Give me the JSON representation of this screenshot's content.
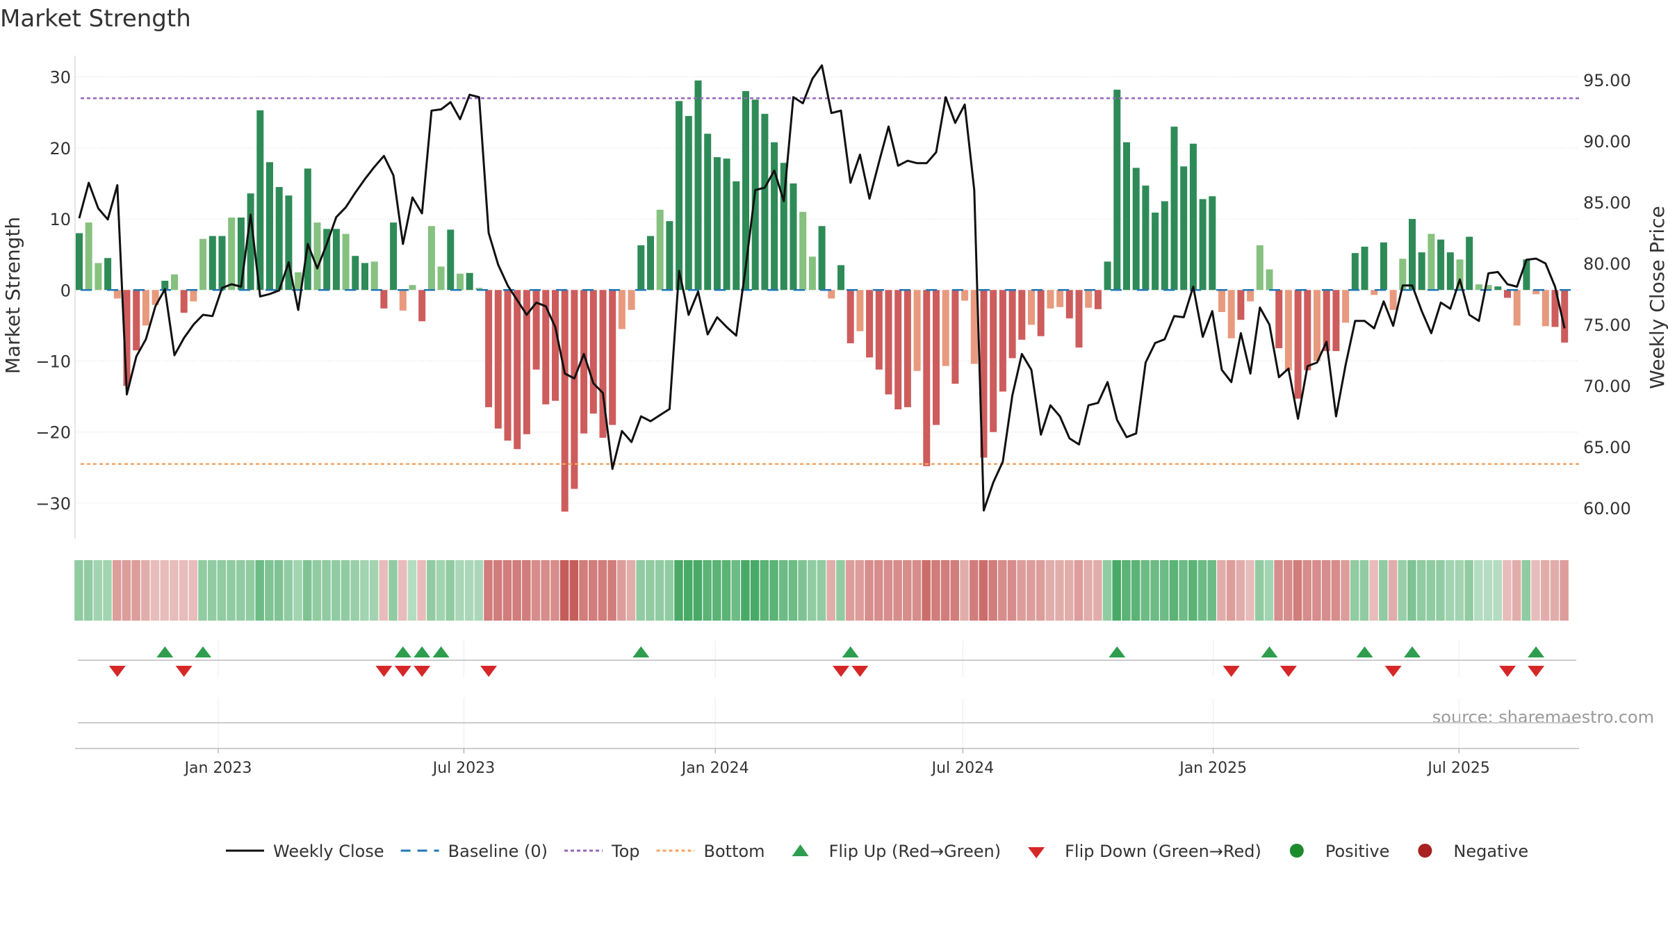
{
  "chart_data": {
    "type": "bar",
    "title": "Market Strength",
    "ylabel_left": "Market Strength",
    "ylabel_right": "Weekly Close Price",
    "source": "source: sharemaestro.com",
    "y_left": {
      "min": -35,
      "max": 33,
      "ticks": [
        30,
        20,
        10,
        0,
        -10,
        -20,
        -30
      ],
      "tick_labels": [
        "30",
        "20",
        "10",
        "0",
        "−10",
        "−20",
        "−30"
      ]
    },
    "y_right": {
      "min": 57.5,
      "max": 97,
      "ticks": [
        95,
        90,
        85,
        80,
        75,
        70,
        65,
        60
      ],
      "tick_labels": [
        "95.00",
        "90.00",
        "85.00",
        "80.00",
        "75.00",
        "70.00",
        "65.00",
        "60.00"
      ]
    },
    "top_level": 27,
    "bottom_level": -24.5,
    "x_axis": {
      "start_week": 0,
      "end_week": 158,
      "ticks": [
        {
          "week": 14.6,
          "label": "Jan 2023"
        },
        {
          "week": 40.4,
          "label": "Jul 2023"
        },
        {
          "week": 66.8,
          "label": "Jan 2024"
        },
        {
          "week": 92.8,
          "label": "Jul 2024"
        },
        {
          "week": 119.1,
          "label": "Jan 2025"
        },
        {
          "week": 144.9,
          "label": "Jul 2025"
        }
      ]
    },
    "strength": [
      8,
      9.5,
      3.8,
      4.5,
      -1.2,
      -13.5,
      -8.5,
      -5,
      -2.1,
      1.3,
      2.2,
      -3.2,
      -1.6,
      7.2,
      7.6,
      7.6,
      10.2,
      10.2,
      13.6,
      25.3,
      18,
      14.5,
      13.3,
      2.5,
      17.1,
      9.5,
      8.6,
      8.6,
      7.9,
      4.8,
      3.8,
      4,
      -2.6,
      9.5,
      -2.9,
      0.7,
      -4.4,
      9,
      3.3,
      8.5,
      2.3,
      2.4,
      0.3,
      -16.5,
      -19.5,
      -21.2,
      -22.4,
      -20.3,
      -11.2,
      -16.1,
      -15.6,
      -31.2,
      -28,
      -20.2,
      -17.4,
      -20.8,
      -19,
      -5.5,
      -2.8,
      6.3,
      7.6,
      11.3,
      9.7,
      26.6,
      24.5,
      29.5,
      22,
      18.7,
      18.5,
      15.3,
      28,
      26.8,
      24.8,
      20.8,
      17.9,
      15,
      11,
      4.7,
      9,
      -1.2,
      3.5,
      -7.5,
      -5.8,
      -9.5,
      -11.2,
      -14.7,
      -16.8,
      -16.5,
      -11.4,
      -24.8,
      -19,
      -10.7,
      -13.2,
      -1.5,
      -10.4,
      -23.6,
      -20,
      -14.3,
      -9.6,
      -7,
      -4.9,
      -6.5,
      -2.6,
      -2.4,
      -4,
      -8.1,
      -2.5,
      -2.7,
      4,
      28.2,
      20.8,
      17.2,
      14.7,
      10.9,
      12.5,
      23,
      17.4,
      20.6,
      12.8,
      13.2,
      -3.1,
      -6.8,
      -4.2,
      -1.6,
      6.3,
      2.9,
      -8.2,
      -11.3,
      -15.3,
      -11.3,
      -10,
      -8.6,
      -8.6,
      -4.6,
      5.2,
      6.1,
      -0.7,
      6.7,
      -2.8,
      4.4,
      10,
      5.3,
      7.9,
      7.1,
      5.3,
      4.3,
      7.5,
      0.8,
      0.7,
      0.5,
      -1.1,
      -5,
      4.3,
      -0.6,
      -5.1,
      -5.2,
      -7.4
    ],
    "weekly_close": [
      83.7,
      86.6,
      84.5,
      83.6,
      86.4,
      69.3,
      72.4,
      73.8,
      76.5,
      77.9,
      72.5,
      73.9,
      75,
      75.8,
      75.7,
      78,
      78.3,
      78.1,
      84,
      77.3,
      77.5,
      77.8,
      80.1,
      76.2,
      81.6,
      79.6,
      81.6,
      83.8,
      84.6,
      85.8,
      86.9,
      87.9,
      88.8,
      87.2,
      81.6,
      85.4,
      84.1,
      92.5,
      92.6,
      93.2,
      91.8,
      93.8,
      93.6,
      82.5,
      79.9,
      78.2,
      77,
      75.8,
      76.8,
      76.5,
      74.8,
      71,
      70.6,
      72.6,
      70.2,
      69.4,
      63.2,
      66.3,
      65.4,
      67.5,
      67.1,
      67.6,
      68.1,
      79.4,
      75.8,
      77.7,
      74.2,
      75.6,
      74.8,
      74.1,
      79.7,
      86,
      86.2,
      87.6,
      85.1,
      93.6,
      93.1,
      95.1,
      96.2,
      92.3,
      92.5,
      86.6,
      88.9,
      85.3,
      88.3,
      91.2,
      88,
      88.4,
      88.2,
      88.2,
      89.1,
      93.6,
      91.5,
      93,
      86,
      59.8,
      62.1,
      63.8,
      69.2,
      72.6,
      71.3,
      66,
      68.4,
      67.5,
      65.7,
      65.2,
      68.4,
      68.6,
      70.3,
      67.2,
      65.8,
      66.1,
      71.9,
      73.5,
      73.8,
      75.7,
      75.6,
      78.1,
      74,
      76.1,
      71.3,
      70.3,
      74.3,
      71,
      76.4,
      75,
      70.7,
      71.4,
      67.3,
      71.6,
      71.9,
      73.6,
      67.5,
      71.7,
      75.3,
      75.3,
      74.7,
      76.9,
      74.9,
      78.2,
      78.2,
      76.1,
      74.3,
      76.8,
      76.3,
      78.7,
      75.8,
      75.3,
      79.2,
      79.3,
      78.3,
      78.1,
      80.3,
      80.4,
      80,
      78.1,
      74.7
    ],
    "heat_strip_values": [
      2,
      2,
      1.5,
      1.5,
      -2,
      -2,
      -2,
      -1.5,
      -1,
      -1,
      -1,
      -1,
      -1,
      2,
      2,
      2,
      2,
      2,
      2,
      3,
      2.5,
      2.5,
      2,
      1.5,
      2.5,
      2,
      2,
      2,
      2,
      1.8,
      1.5,
      1.5,
      -1,
      2,
      -1,
      1,
      -1,
      2,
      1.5,
      2,
      1.3,
      1.3,
      1.3,
      -3,
      -3,
      -3,
      -3,
      -3,
      -2.5,
      -2.5,
      -2.5,
      -4,
      -4,
      -3,
      -3,
      -3,
      -3,
      -2,
      -1.5,
      2,
      2,
      2,
      2,
      4,
      4,
      4,
      3.5,
      3.5,
      3.5,
      3,
      4,
      4,
      3.5,
      3.5,
      3,
      3,
      2.5,
      2,
      2,
      -1.5,
      2,
      -2,
      -2,
      -2.5,
      -2.5,
      -2.5,
      -2.5,
      -2.5,
      -2.5,
      -3.5,
      -3,
      -3,
      -3,
      -1.5,
      -3,
      -3.5,
      -3,
      -2.5,
      -2.5,
      -2,
      -2,
      -2,
      -1.5,
      -1.5,
      -1.5,
      -2,
      -1.5,
      -1.5,
      2,
      4,
      3.5,
      3.5,
      3,
      3,
      3,
      3.5,
      3,
      3.5,
      3,
      3,
      -1.5,
      -2,
      -1.5,
      -1,
      2,
      1.5,
      -2.5,
      -2.5,
      -3,
      -2.5,
      -2.5,
      -2.5,
      -2.5,
      -2,
      2,
      2,
      -1,
      2,
      -1.5,
      1.8,
      2.5,
      2,
      2,
      2,
      1.5,
      1.5,
      2,
      1,
      1,
      1,
      -1,
      -1.5,
      2,
      -1,
      -1.5,
      -1.5,
      -2
    ],
    "flip_up_weeks": [
      9,
      13,
      34,
      36,
      38,
      59,
      81,
      109,
      125,
      135,
      140,
      153
    ],
    "flip_down_weeks": [
      4,
      11,
      32,
      34,
      36,
      43,
      80,
      82,
      121,
      127,
      138,
      150,
      153
    ],
    "legend": [
      {
        "label": "Weekly Close",
        "kind": "line",
        "color": "#111111"
      },
      {
        "label": "Baseline (0)",
        "kind": "dash",
        "color": "#1f77b4"
      },
      {
        "label": "Top",
        "kind": "dotted",
        "color": "#9467bd"
      },
      {
        "label": "Bottom",
        "kind": "dotted",
        "color": "#f4a261"
      },
      {
        "label": "Flip Up (Red→Green)",
        "kind": "triangle-up",
        "color": "#2e9e4e"
      },
      {
        "label": "Flip Down (Green→Red)",
        "kind": "triangle-down",
        "color": "#d62728"
      },
      {
        "label": "Positive",
        "kind": "dot",
        "color": "#1e8a2e"
      },
      {
        "label": "Negative",
        "kind": "dot",
        "color": "#a8201f"
      }
    ],
    "colors": {
      "strong_green": "#2e8b57",
      "light_green": "#86c17f",
      "strong_red": "#cd5c5c",
      "light_red": "#e89a7e",
      "top_line": "#9467bd",
      "bottom_line": "#f4a261",
      "baseline": "#1f77b4",
      "close_line": "#111111",
      "heat_green": "#3aa35a",
      "heat_red": "#c0504d"
    }
  }
}
